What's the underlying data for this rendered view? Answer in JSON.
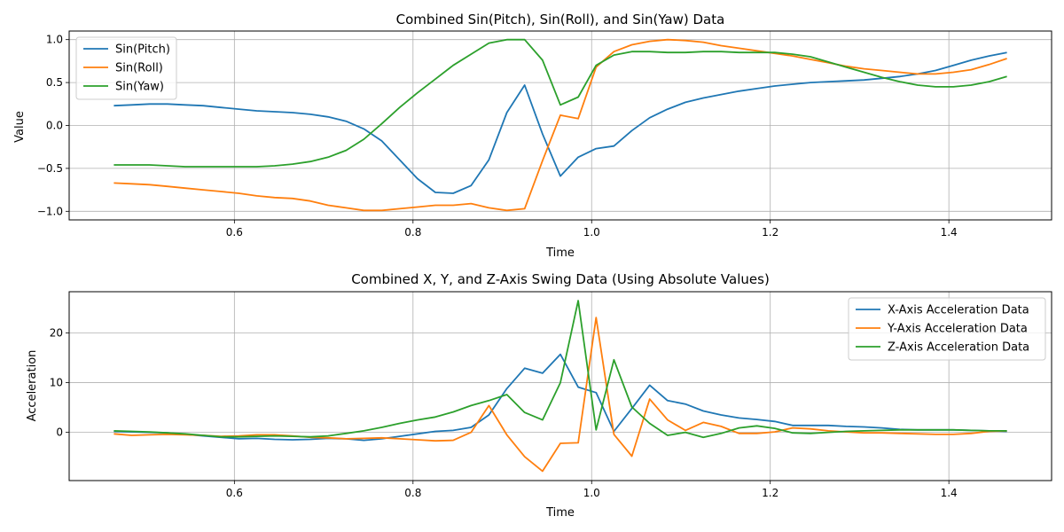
{
  "chart_data": [
    {
      "type": "line",
      "title": "Combined Sin(Pitch), Sin(Roll), and Sin(Yaw) Data",
      "xlabel": "Time",
      "ylabel": "Value",
      "xlim": [
        0.415,
        1.515
      ],
      "ylim": [
        -1.1,
        1.1
      ],
      "xticks": [
        0.6,
        0.8,
        1.0,
        1.2,
        1.4
      ],
      "xtick_labels": [
        "0.6",
        "0.8",
        "1.0",
        "1.2",
        "1.4"
      ],
      "yticks": [
        -1.0,
        -0.5,
        0.0,
        0.5,
        1.0
      ],
      "ytick_labels": [
        "−1.0",
        "−0.5",
        "0.0",
        "0.5",
        "1.0"
      ],
      "grid": true,
      "legend_position": "top-left",
      "x": [
        0.465,
        0.485,
        0.505,
        0.525,
        0.545,
        0.565,
        0.585,
        0.605,
        0.625,
        0.645,
        0.665,
        0.685,
        0.705,
        0.725,
        0.745,
        0.765,
        0.785,
        0.805,
        0.825,
        0.845,
        0.865,
        0.885,
        0.905,
        0.925,
        0.945,
        0.965,
        0.985,
        1.005,
        1.025,
        1.045,
        1.065,
        1.085,
        1.105,
        1.125,
        1.145,
        1.165,
        1.185,
        1.205,
        1.225,
        1.245,
        1.265,
        1.285,
        1.305,
        1.325,
        1.345,
        1.365,
        1.385,
        1.405,
        1.425,
        1.445,
        1.465
      ],
      "series": [
        {
          "name": "Sin(Pitch)",
          "color": "#1f77b4",
          "values": [
            0.23,
            0.24,
            0.25,
            0.25,
            0.24,
            0.23,
            0.21,
            0.19,
            0.17,
            0.16,
            0.15,
            0.13,
            0.1,
            0.05,
            -0.04,
            -0.18,
            -0.4,
            -0.62,
            -0.78,
            -0.79,
            -0.7,
            -0.4,
            0.15,
            0.47,
            -0.1,
            -0.59,
            -0.37,
            -0.27,
            -0.24,
            -0.06,
            0.09,
            0.19,
            0.27,
            0.32,
            0.36,
            0.4,
            0.43,
            0.46,
            0.48,
            0.5,
            0.51,
            0.52,
            0.53,
            0.55,
            0.57,
            0.6,
            0.64,
            0.7,
            0.76,
            0.81,
            0.85
          ]
        },
        {
          "name": "Sin(Roll)",
          "color": "#ff7f0e",
          "values": [
            -0.67,
            -0.68,
            -0.69,
            -0.71,
            -0.73,
            -0.75,
            -0.77,
            -0.79,
            -0.82,
            -0.84,
            -0.85,
            -0.88,
            -0.93,
            -0.96,
            -0.99,
            -0.99,
            -0.97,
            -0.95,
            -0.93,
            -0.93,
            -0.91,
            -0.96,
            -0.99,
            -0.97,
            -0.41,
            0.12,
            0.08,
            0.68,
            0.86,
            0.94,
            0.98,
            1.0,
            0.99,
            0.97,
            0.93,
            0.9,
            0.87,
            0.84,
            0.81,
            0.77,
            0.73,
            0.69,
            0.66,
            0.64,
            0.62,
            0.6,
            0.6,
            0.62,
            0.65,
            0.71,
            0.78
          ]
        },
        {
          "name": "Sin(Yaw)",
          "color": "#2ca02c",
          "values": [
            -0.46,
            -0.46,
            -0.46,
            -0.47,
            -0.48,
            -0.48,
            -0.48,
            -0.48,
            -0.48,
            -0.47,
            -0.45,
            -0.42,
            -0.37,
            -0.29,
            -0.16,
            0.02,
            0.21,
            0.38,
            0.54,
            0.7,
            0.83,
            0.96,
            1.0,
            1.0,
            0.76,
            0.24,
            0.33,
            0.7,
            0.82,
            0.86,
            0.86,
            0.85,
            0.85,
            0.86,
            0.86,
            0.85,
            0.85,
            0.85,
            0.83,
            0.8,
            0.74,
            0.68,
            0.62,
            0.56,
            0.51,
            0.47,
            0.45,
            0.45,
            0.47,
            0.51,
            0.57
          ]
        }
      ]
    },
    {
      "type": "line",
      "title": "Combined X, Y, and Z-Axis Swing Data (Using Absolute Values)",
      "xlabel": "Time",
      "ylabel": "Acceleration",
      "xlim": [
        0.415,
        1.515
      ],
      "ylim": [
        -9.7,
        28.3
      ],
      "xticks": [
        0.6,
        0.8,
        1.0,
        1.2,
        1.4
      ],
      "xtick_labels": [
        "0.6",
        "0.8",
        "1.0",
        "1.2",
        "1.4"
      ],
      "yticks": [
        0,
        10,
        20
      ],
      "ytick_labels": [
        "0",
        "10",
        "20"
      ],
      "grid": true,
      "legend_position": "top-right",
      "x": [
        0.465,
        0.485,
        0.505,
        0.525,
        0.545,
        0.565,
        0.585,
        0.605,
        0.625,
        0.645,
        0.665,
        0.685,
        0.705,
        0.725,
        0.745,
        0.765,
        0.785,
        0.805,
        0.825,
        0.845,
        0.865,
        0.885,
        0.905,
        0.925,
        0.945,
        0.965,
        0.985,
        1.005,
        1.025,
        1.045,
        1.065,
        1.085,
        1.105,
        1.125,
        1.145,
        1.165,
        1.185,
        1.205,
        1.225,
        1.245,
        1.265,
        1.285,
        1.305,
        1.325,
        1.345,
        1.365,
        1.385,
        1.405,
        1.425,
        1.445,
        1.465
      ],
      "series": [
        {
          "name": "X-Axis Acceleration Data",
          "color": "#1f77b4",
          "values": [
            0.2,
            0.1,
            0.0,
            -0.1,
            -0.4,
            -0.7,
            -1.0,
            -1.3,
            -1.2,
            -1.4,
            -1.5,
            -1.4,
            -1.2,
            -1.3,
            -1.6,
            -1.3,
            -0.8,
            -0.3,
            0.2,
            0.4,
            1.0,
            3.5,
            8.8,
            12.9,
            11.9,
            15.7,
            9.1,
            8.0,
            0.2,
            4.8,
            9.5,
            6.4,
            5.7,
            4.3,
            3.5,
            2.9,
            2.6,
            2.2,
            1.4,
            1.4,
            1.4,
            1.2,
            1.1,
            0.9,
            0.6,
            0.5,
            0.5,
            0.5,
            0.4,
            0.3,
            0.2
          ]
        },
        {
          "name": "Y-Axis Acceleration Data",
          "color": "#ff7f0e",
          "values": [
            -0.3,
            -0.6,
            -0.5,
            -0.4,
            -0.5,
            -0.6,
            -0.8,
            -0.7,
            -0.5,
            -0.5,
            -0.7,
            -1.0,
            -1.1,
            -1.3,
            -1.2,
            -1.1,
            -1.3,
            -1.5,
            -1.7,
            -1.6,
            0.0,
            5.4,
            -0.5,
            -4.9,
            -7.8,
            -2.2,
            -2.1,
            23.1,
            -0.4,
            -4.8,
            6.7,
            2.5,
            0.4,
            2.0,
            1.2,
            -0.2,
            -0.2,
            0.1,
            0.9,
            0.7,
            0.3,
            0.1,
            -0.1,
            -0.1,
            -0.2,
            -0.3,
            -0.4,
            -0.4,
            -0.2,
            0.2,
            0.3
          ]
        },
        {
          "name": "Z-Axis Acceleration Data",
          "color": "#2ca02c",
          "values": [
            0.3,
            0.2,
            0.1,
            -0.1,
            -0.3,
            -0.6,
            -0.9,
            -0.9,
            -0.8,
            -0.7,
            -0.8,
            -0.9,
            -0.7,
            -0.2,
            0.3,
            1.0,
            1.8,
            2.5,
            3.1,
            4.1,
            5.4,
            6.4,
            7.6,
            4.0,
            2.5,
            10.0,
            26.5,
            0.5,
            14.6,
            5.1,
            1.8,
            -0.6,
            0.0,
            -1.0,
            -0.2,
            0.9,
            1.3,
            0.8,
            -0.1,
            -0.2,
            0.0,
            0.2,
            0.3,
            0.4,
            0.5,
            0.5,
            0.5,
            0.5,
            0.4,
            0.3,
            0.3
          ]
        }
      ]
    }
  ]
}
